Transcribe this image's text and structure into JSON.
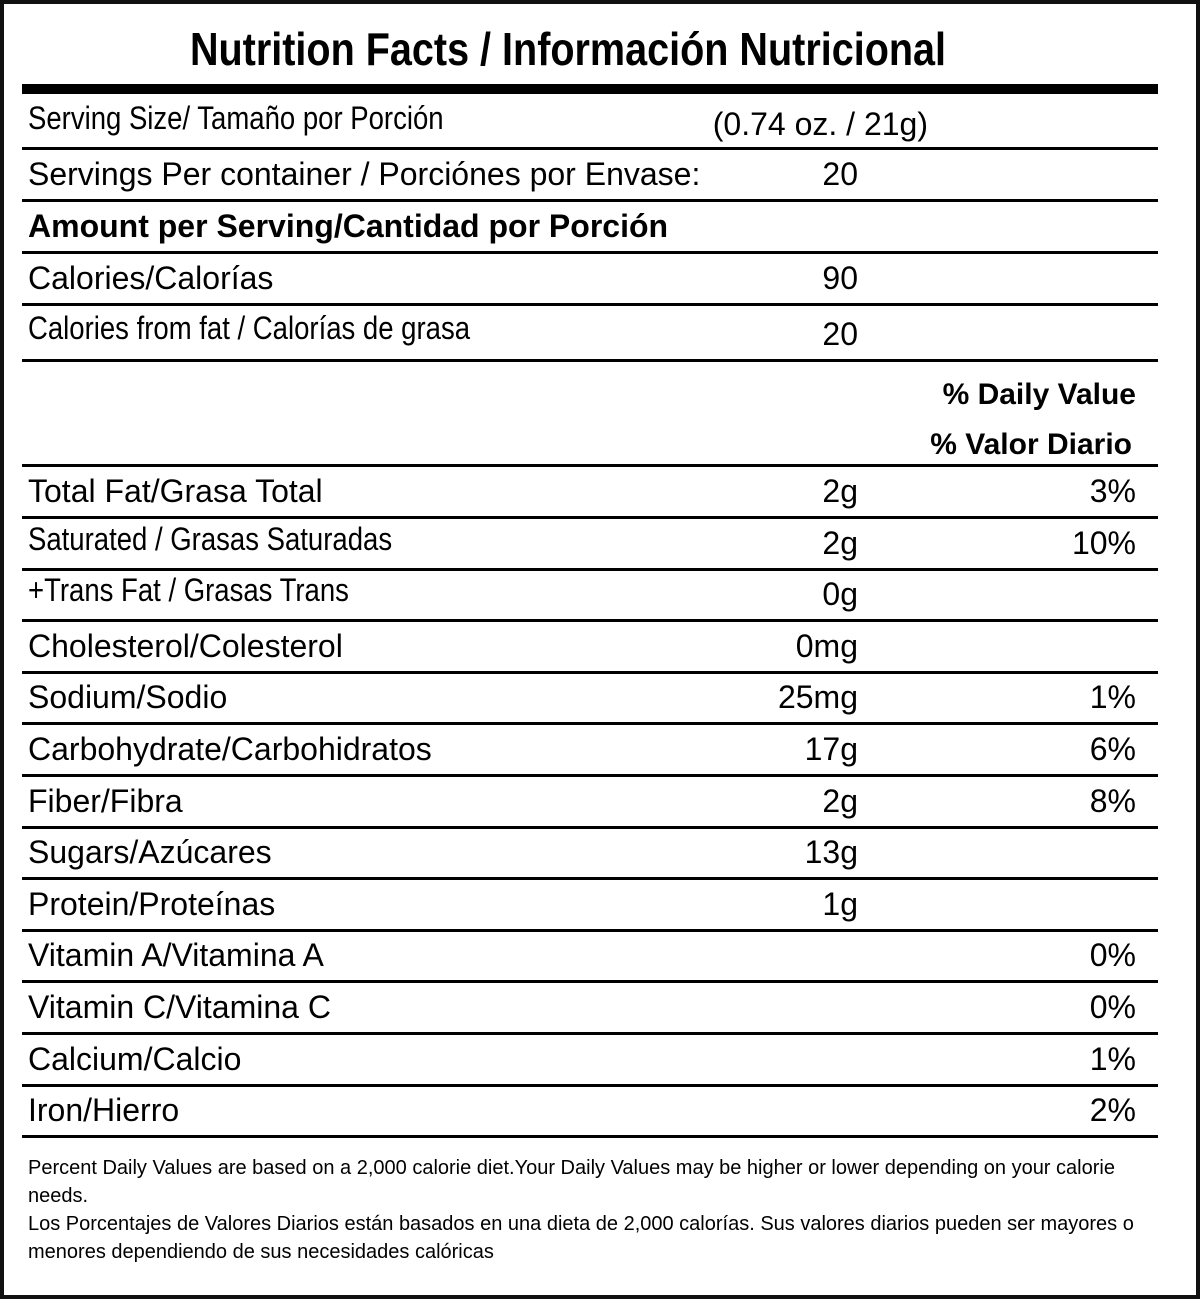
{
  "title": "Nutrition Facts / Información Nutricional",
  "serving_size": {
    "label": "Serving Size/ Tamaño por Porción",
    "value": "(0.74 oz. / 21g)"
  },
  "servings_per_container": {
    "label": "Servings Per container / Porciónes por Envase:",
    "value": "20"
  },
  "amount_header": "Amount per Serving/Cantidad por Porción",
  "calories": {
    "label": "Calories/Calorías",
    "value": "90"
  },
  "calories_from_fat": {
    "label": "Calories from fat / Calorías de grasa",
    "value": "20"
  },
  "daily_value_header": {
    "en": "% Daily Value",
    "es": "% Valor Diario"
  },
  "nutrients": [
    {
      "label": "Total Fat/Grasa Total",
      "amount": "2g",
      "dv": "3%"
    },
    {
      "label": "Saturated / Grasas Saturadas",
      "amount": "2g",
      "dv": "10%"
    },
    {
      "label": "+Trans Fat / Grasas Trans",
      "amount": "0g",
      "dv": ""
    },
    {
      "label": "Cholesterol/Colesterol",
      "amount": "0mg",
      "dv": ""
    },
    {
      "label": "Sodium/Sodio",
      "amount": "25mg",
      "dv": "1%"
    },
    {
      "label": "Carbohydrate/Carbohidratos",
      "amount": "17g",
      "dv": "6%"
    },
    {
      "label": "Fiber/Fibra",
      "amount": "2g",
      "dv": "8%"
    },
    {
      "label": "Sugars/Azúcares",
      "amount": "13g",
      "dv": ""
    },
    {
      "label": "Protein/Proteínas",
      "amount": "1g",
      "dv": ""
    },
    {
      "label": "Vitamin A/Vitamina A",
      "amount": "",
      "dv": "0%"
    },
    {
      "label": "Vitamin C/Vitamina C",
      "amount": "",
      "dv": "0%"
    },
    {
      "label": "Calcium/Calcio",
      "amount": "",
      "dv": "1%"
    },
    {
      "label": "Iron/Hierro",
      "amount": "",
      "dv": "2%"
    }
  ],
  "footnote": {
    "en": "Percent Daily Values are based on a 2,000 calorie diet.Your Daily Values may be higher or lower depending on your calorie needs.",
    "es": "Los Porcentajes de Valores Diarios están basados en una dieta de 2,000 calorías. Sus valores diarios pueden ser mayores o menores dependiendo de sus necesidades calóricas"
  }
}
